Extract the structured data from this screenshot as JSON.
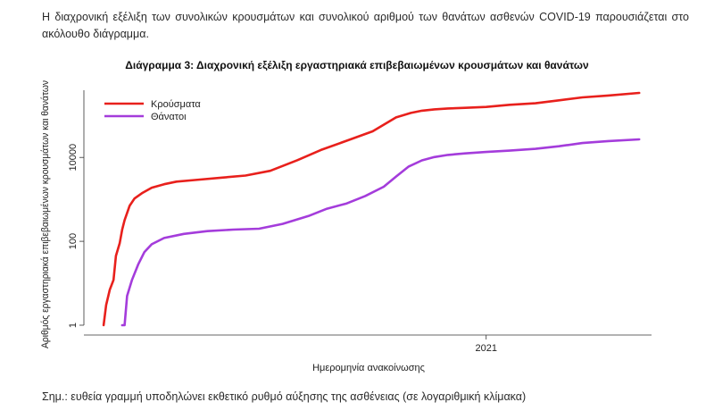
{
  "intro_text": "Η διαχρονική εξέλιξη των συνολικών κρουσμάτων και συνολικού αριθμού των θανάτων ασθενών COVID-19 παρουσιάζεται στο ακόλουθο διάγραμμα.",
  "note_text": "Σημ.: ευθεία γραμμή υποδηλώνει εκθετικό ρυθμό αύξησης της ασθένειας (σε λογαριθμική κλίμακα)",
  "chart_data": {
    "type": "line",
    "title": "Διάγραμμα 3: Διαχρονική εξέλιξη εργαστηριακά επιβεβαιωμένων κρουσμάτων και θανάτων",
    "xlabel": "Ημερομηνία ανακοίνωσης",
    "ylabel": "Αριθμός εργαστηριακά επιβεβαιωμένων κρουσμάτων και θανάτων",
    "y_scale": "log",
    "ylim": [
      1,
      400000
    ],
    "y_ticks": [
      1,
      100,
      10000
    ],
    "y_tick_labels": [
      "1",
      "100",
      "10000"
    ],
    "xlim": [
      "2020-02-10",
      "2021-05-15"
    ],
    "x_ticks": [
      "2021-01-01"
    ],
    "x_tick_labels": [
      "2021"
    ],
    "grid": false,
    "legend_position": "top-left",
    "series": [
      {
        "name": "Κρούσματα",
        "color": "#e8201c",
        "x": [
          "2020-02-26",
          "2020-02-28",
          "2020-03-02",
          "2020-03-05",
          "2020-03-07",
          "2020-03-10",
          "2020-03-12",
          "2020-03-14",
          "2020-03-18",
          "2020-03-22",
          "2020-03-28",
          "2020-04-05",
          "2020-04-15",
          "2020-04-25",
          "2020-05-10",
          "2020-06-01",
          "2020-06-20",
          "2020-07-10",
          "2020-08-01",
          "2020-08-20",
          "2020-09-10",
          "2020-10-01",
          "2020-10-20",
          "2020-11-01",
          "2020-11-10",
          "2020-11-20",
          "2020-12-01",
          "2020-12-15",
          "2021-01-01",
          "2021-01-20",
          "2021-02-10",
          "2021-03-01",
          "2021-03-20",
          "2021-04-10",
          "2021-05-05"
        ],
        "values": [
          1,
          3,
          7,
          12,
          45,
          90,
          190,
          320,
          700,
          1050,
          1400,
          1900,
          2300,
          2650,
          2900,
          3300,
          3700,
          4800,
          8600,
          15000,
          25000,
          42000,
          90000,
          115000,
          130000,
          140000,
          147000,
          152000,
          160000,
          180000,
          195000,
          230000,
          270000,
          300000,
          345000
        ]
      },
      {
        "name": "Θάνατοι",
        "color": "#a43cdb",
        "x": [
          "2020-03-12",
          "2020-03-14",
          "2020-03-16",
          "2020-03-20",
          "2020-03-25",
          "2020-03-30",
          "2020-04-05",
          "2020-04-15",
          "2020-05-01",
          "2020-05-20",
          "2020-06-10",
          "2020-07-01",
          "2020-07-20",
          "2020-08-10",
          "2020-08-25",
          "2020-09-10",
          "2020-09-25",
          "2020-10-10",
          "2020-10-20",
          "2020-10-30",
          "2020-11-10",
          "2020-11-20",
          "2020-12-01",
          "2020-12-15",
          "2021-01-01",
          "2021-01-20",
          "2021-02-10",
          "2021-03-01",
          "2021-03-20",
          "2021-04-10",
          "2021-05-05"
        ],
        "values": [
          1,
          1,
          5,
          12,
          28,
          55,
          85,
          120,
          150,
          175,
          190,
          200,
          260,
          400,
          600,
          800,
          1200,
          2000,
          3500,
          6000,
          8500,
          10200,
          11500,
          12500,
          13500,
          14500,
          16000,
          18500,
          22000,
          24500,
          27000
        ]
      }
    ]
  }
}
